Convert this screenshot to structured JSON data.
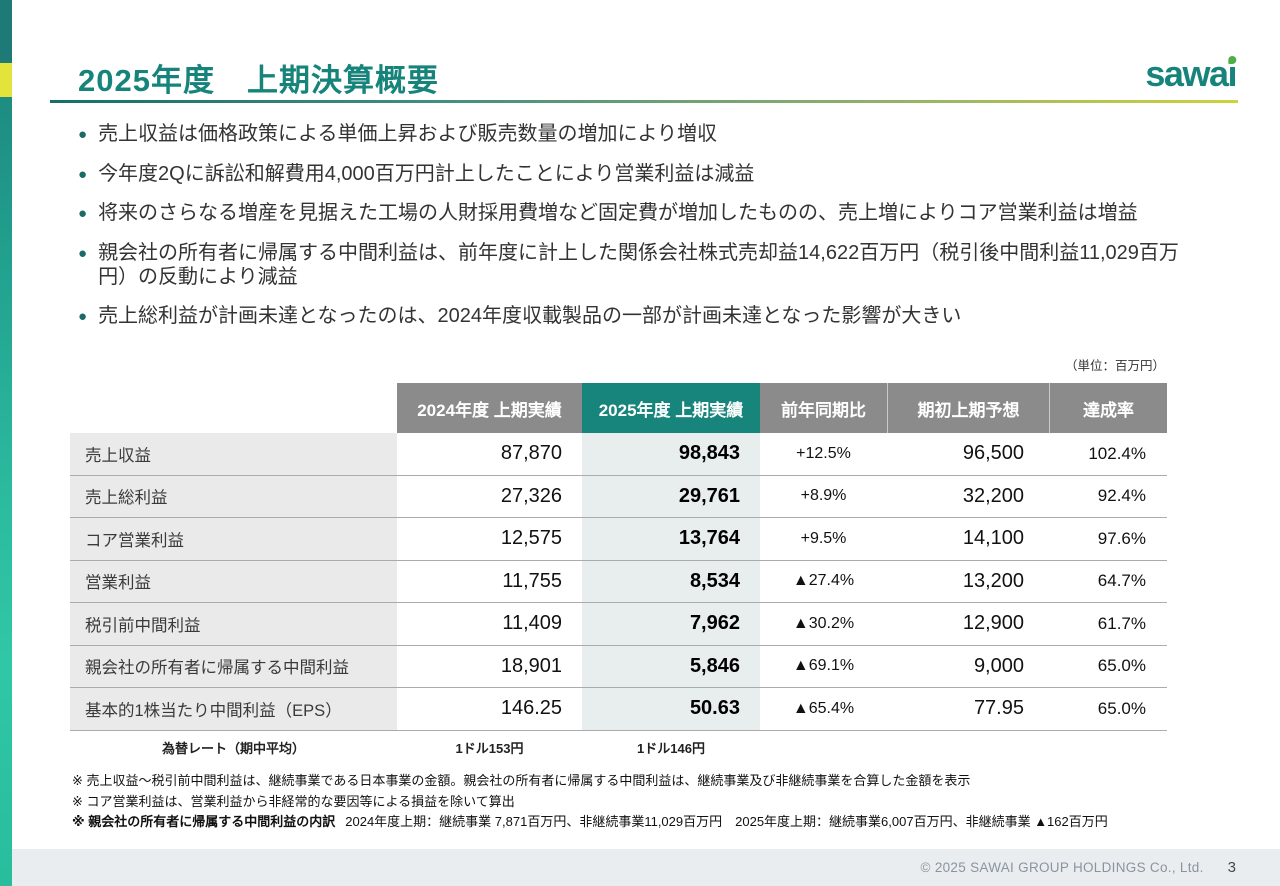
{
  "slide": {
    "title": "2025年度　上期決算概要",
    "unit_label": "（単位：百万円）"
  },
  "logo": {
    "prefix": "sawa",
    "i": "ı"
  },
  "bullets": [
    "売上収益は価格政策による単価上昇および販売数量の増加により増収",
    "今年度2Qに訴訟和解費用4,000百万円計上したことにより営業利益は減益",
    "将来のさらなる増産を見据えた工場の人財採用費増など固定費が増加したものの、売上増によりコア営業利益は増益",
    "親会社の所有者に帰属する中間利益は、前年度に計上した関係会社株式売却益14,622百万円（税引後中間利益11,029百万円）の反動により減益",
    "売上総利益が計画未達となったのは、2024年度収載製品の一部が計画未達となった影響が大きい"
  ],
  "table": {
    "headers": {
      "fy2024": "2024年度 上期実績",
      "fy2025": "2025年度 上期実績",
      "yoy": "前年同期比",
      "forecast": "期初上期予想",
      "achievement": "達成率"
    },
    "rows": [
      {
        "label": "売上収益",
        "fy2024": "87,870",
        "fy2025": "98,843",
        "yoy": "+12.5%",
        "forecast": "96,500",
        "achievement": "102.4%"
      },
      {
        "label": "売上総利益",
        "fy2024": "27,326",
        "fy2025": "29,761",
        "yoy": "+8.9%",
        "forecast": "32,200",
        "achievement": "92.4%"
      },
      {
        "label": "コア営業利益",
        "fy2024": "12,575",
        "fy2025": "13,764",
        "yoy": "+9.5%",
        "forecast": "14,100",
        "achievement": "97.6%"
      },
      {
        "label": "営業利益",
        "fy2024": "11,755",
        "fy2025": "8,534",
        "yoy": "▲27.4%",
        "forecast": "13,200",
        "achievement": "64.7%"
      },
      {
        "label": "税引前中間利益",
        "fy2024": "11,409",
        "fy2025": "7,962",
        "yoy": "▲30.2%",
        "forecast": "12,900",
        "achievement": "61.7%"
      },
      {
        "label": "親会社の所有者に帰属する中間利益",
        "fy2024": "18,901",
        "fy2025": "5,846",
        "yoy": "▲69.1%",
        "forecast": "9,000",
        "achievement": "65.0%"
      },
      {
        "label": "基本的1株当たり中間利益（EPS）",
        "fy2024": "146.25",
        "fy2025": "50.63",
        "yoy": "▲65.4%",
        "forecast": "77.95",
        "achievement": "65.0%"
      }
    ],
    "exchange_rate": {
      "label": "為替レート（期中平均）",
      "fy2024": "1ドル153円",
      "fy2025": "1ドル146円"
    }
  },
  "footnotes": [
    {
      "text": "※ 売上収益～税引前中間利益は、継続事業である日本事業の金額。親会社の所有者に帰属する中間利益は、継続事業及び非継続事業を合算した金額を表示"
    },
    {
      "text": "※ コア営業利益は、営業利益から非経常的な要因等による損益を除いて算出"
    },
    {
      "label": "※ 親会社の所有者に帰属する中間利益の内訳",
      "detail": "2024年度上期：継続事業 7,871百万円、非継続事業11,029百万円　2025年度上期：継続事業6,007百万円、非継続事業 ▲162百万円"
    }
  ],
  "footer": {
    "copyright": "© 2025 SAWAI GROUP HOLDINGS Co., Ltd.",
    "page_number": "3"
  },
  "colors": {
    "accent_teal": "#17847B",
    "header_gray": "#8B8B8B",
    "highlight_column_bg": "#E8EEED",
    "label_column_bg": "#EAEAEB",
    "strip_yellow": "#E2E43C",
    "footer_bg": "#EAEDF0",
    "logo_dot_green": "#4FAE47"
  }
}
